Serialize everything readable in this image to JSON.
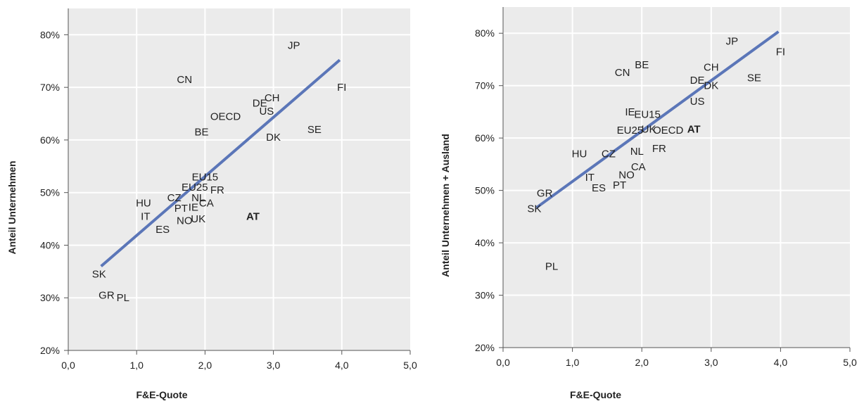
{
  "chart_data": [
    {
      "type": "scatter",
      "xlabel": "F&E-Quote",
      "ylabel": "Anteil Unternehmen",
      "xlim": [
        0,
        5
      ],
      "ylim": [
        0.2,
        0.85
      ],
      "x_ticks": [
        "0,0",
        "1,0",
        "2,0",
        "3,0",
        "4,0",
        "5,0"
      ],
      "y_ticks": [
        "20%",
        "30%",
        "40%",
        "50%",
        "60%",
        "70%",
        "80%"
      ],
      "trendline": {
        "x": [
          0.48,
          3.97
        ],
        "y": [
          0.36,
          0.752
        ],
        "color": "#5b76b8"
      },
      "points": [
        {
          "label": "JP",
          "x": 3.3,
          "y": 0.78
        },
        {
          "label": "FI",
          "x": 4.0,
          "y": 0.7
        },
        {
          "label": "CN",
          "x": 1.7,
          "y": 0.715
        },
        {
          "label": "DE",
          "x": 2.8,
          "y": 0.67
        },
        {
          "label": "CH",
          "x": 2.98,
          "y": 0.68
        },
        {
          "label": "US",
          "x": 2.9,
          "y": 0.655
        },
        {
          "label": "OECD",
          "x": 2.3,
          "y": 0.645
        },
        {
          "label": "SE",
          "x": 3.6,
          "y": 0.62
        },
        {
          "label": "BE",
          "x": 1.95,
          "y": 0.615
        },
        {
          "label": "DK",
          "x": 3.0,
          "y": 0.605
        },
        {
          "label": "EU15",
          "x": 2.0,
          "y": 0.53
        },
        {
          "label": "EU25",
          "x": 1.85,
          "y": 0.51
        },
        {
          "label": "CZ",
          "x": 1.55,
          "y": 0.49
        },
        {
          "label": "FR",
          "x": 2.18,
          "y": 0.505
        },
        {
          "label": "NL",
          "x": 1.9,
          "y": 0.49
        },
        {
          "label": "CA",
          "x": 2.02,
          "y": 0.48
        },
        {
          "label": "HU",
          "x": 1.1,
          "y": 0.48
        },
        {
          "label": "PT",
          "x": 1.65,
          "y": 0.47
        },
        {
          "label": "IE",
          "x": 1.83,
          "y": 0.472
        },
        {
          "label": "IT",
          "x": 1.13,
          "y": 0.455
        },
        {
          "label": "AT",
          "x": 2.7,
          "y": 0.455,
          "bold": true
        },
        {
          "label": "UK",
          "x": 1.9,
          "y": 0.45
        },
        {
          "label": "NO",
          "x": 1.7,
          "y": 0.447
        },
        {
          "label": "ES",
          "x": 1.38,
          "y": 0.43
        },
        {
          "label": "SK",
          "x": 0.45,
          "y": 0.345
        },
        {
          "label": "GR",
          "x": 0.56,
          "y": 0.305
        },
        {
          "label": "PL",
          "x": 0.8,
          "y": 0.3
        }
      ]
    },
    {
      "type": "scatter",
      "xlabel": "F&E-Quote",
      "ylabel": "Anteil Unternehmen + Ausland",
      "xlim": [
        0,
        5
      ],
      "ylim": [
        0.2,
        0.85
      ],
      "x_ticks": [
        "0,0",
        "1,0",
        "2,0",
        "3,0",
        "4,0",
        "5,0"
      ],
      "y_ticks": [
        "20%",
        "30%",
        "40%",
        "50%",
        "60%",
        "70%",
        "80%"
      ],
      "trendline": {
        "x": [
          0.48,
          3.97
        ],
        "y": [
          0.467,
          0.803
        ],
        "color": "#5b76b8"
      },
      "points": [
        {
          "label": "JP",
          "x": 3.3,
          "y": 0.785
        },
        {
          "label": "FI",
          "x": 4.0,
          "y": 0.765
        },
        {
          "label": "BE",
          "x": 2.0,
          "y": 0.74
        },
        {
          "label": "CN",
          "x": 1.72,
          "y": 0.725
        },
        {
          "label": "CH",
          "x": 3.0,
          "y": 0.735
        },
        {
          "label": "SE",
          "x": 3.62,
          "y": 0.715
        },
        {
          "label": "DE",
          "x": 2.8,
          "y": 0.71
        },
        {
          "label": "DK",
          "x": 3.0,
          "y": 0.7
        },
        {
          "label": "US",
          "x": 2.8,
          "y": 0.67
        },
        {
          "label": "IE",
          "x": 1.83,
          "y": 0.65
        },
        {
          "label": "EU15",
          "x": 2.08,
          "y": 0.645
        },
        {
          "label": "EU25",
          "x": 1.83,
          "y": 0.615
        },
        {
          "label": "UK",
          "x": 2.1,
          "y": 0.617
        },
        {
          "label": "OECD",
          "x": 2.38,
          "y": 0.615
        },
        {
          "label": "AT",
          "x": 2.75,
          "y": 0.617,
          "bold": true
        },
        {
          "label": "FR",
          "x": 2.25,
          "y": 0.58
        },
        {
          "label": "HU",
          "x": 1.1,
          "y": 0.57
        },
        {
          "label": "CZ",
          "x": 1.52,
          "y": 0.57
        },
        {
          "label": "NL",
          "x": 1.93,
          "y": 0.575
        },
        {
          "label": "CA",
          "x": 1.95,
          "y": 0.545
        },
        {
          "label": "IT",
          "x": 1.25,
          "y": 0.525
        },
        {
          "label": "NO",
          "x": 1.78,
          "y": 0.53
        },
        {
          "label": "GR",
          "x": 0.6,
          "y": 0.495
        },
        {
          "label": "ES",
          "x": 1.38,
          "y": 0.505
        },
        {
          "label": "PT",
          "x": 1.68,
          "y": 0.51
        },
        {
          "label": "SK",
          "x": 0.45,
          "y": 0.465
        },
        {
          "label": "PL",
          "x": 0.7,
          "y": 0.355
        }
      ]
    }
  ]
}
